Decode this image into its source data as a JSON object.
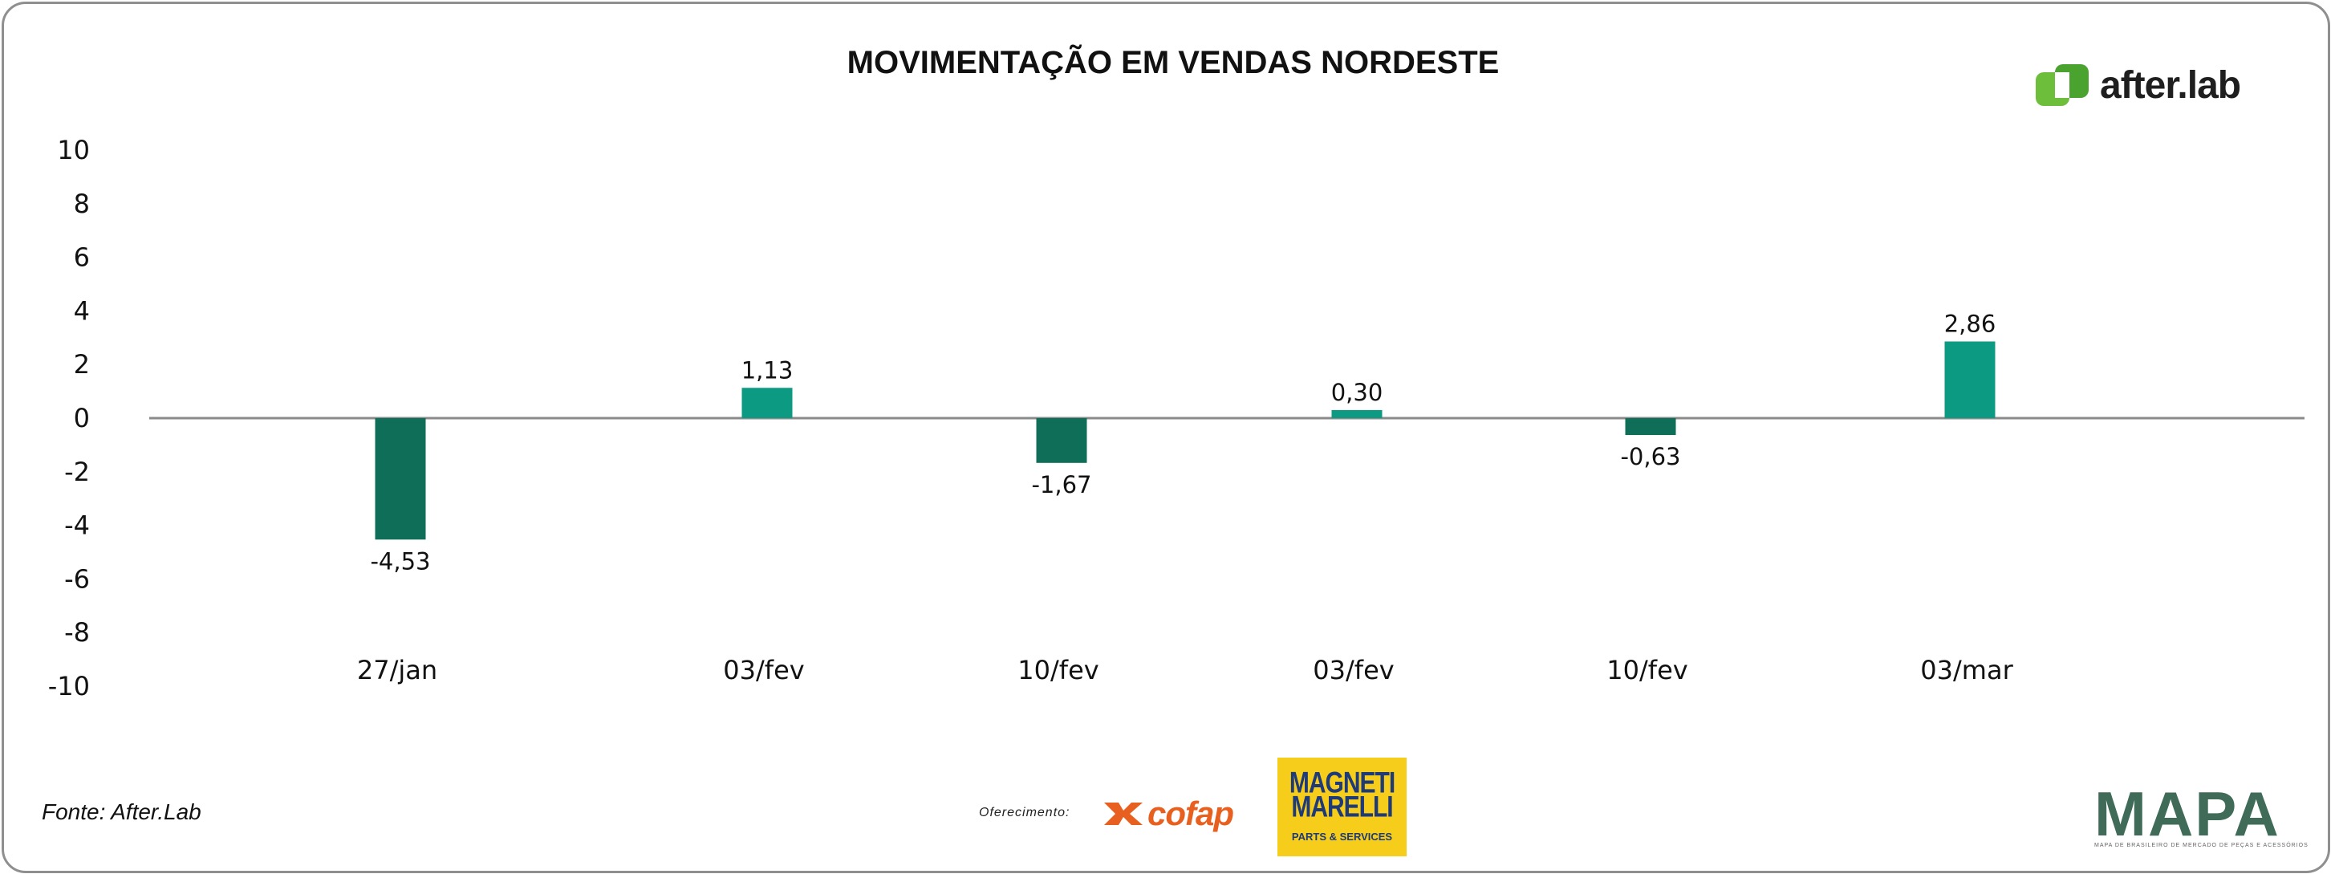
{
  "chart_data": {
    "type": "bar",
    "title": "MOVIMENTAÇÃO EM VENDAS NORDESTE",
    "xlabel": "",
    "ylabel": "",
    "ylim": [
      -10,
      10
    ],
    "yticks": [
      "10",
      "8",
      "6",
      "4",
      "2",
      "0",
      "-2",
      "-4",
      "-6",
      "-8",
      "-10"
    ],
    "ytick_values": [
      10,
      8,
      6,
      4,
      2,
      0,
      -2,
      -4,
      -6,
      -8,
      -10
    ],
    "categories": [
      "27/jan",
      "03/fev",
      "10/fev",
      "03/fev",
      "10/fev",
      "03/mar"
    ],
    "values": [
      -4.53,
      1.13,
      -1.67,
      0.3,
      -0.63,
      2.86
    ],
    "value_labels": [
      "-4,53",
      "1,13",
      "-1,67",
      "0,30",
      "-0,63",
      "2,86"
    ],
    "colors": {
      "negative": "#0f6e57",
      "positive": "#0d9a82",
      "axis": "#8a8a8a"
    },
    "legend": "none",
    "grid": false
  },
  "branding": {
    "logo_text": "after.lab",
    "logo_color": "#6dbf3b"
  },
  "footer": {
    "source": "Fonte: After.Lab",
    "offer_label": "Oferecimento:",
    "sponsor1": "cofap",
    "sponsor2_line1": "MAGNETI",
    "sponsor2_line2": "MARELLI",
    "sponsor2_sub": "PARTS & SERVICES",
    "mapa": "MAPA",
    "mapa_sub": "MAPA DE BRASILEIRO DE MERCADO DE PEÇAS E ACESSÓRIOS"
  }
}
